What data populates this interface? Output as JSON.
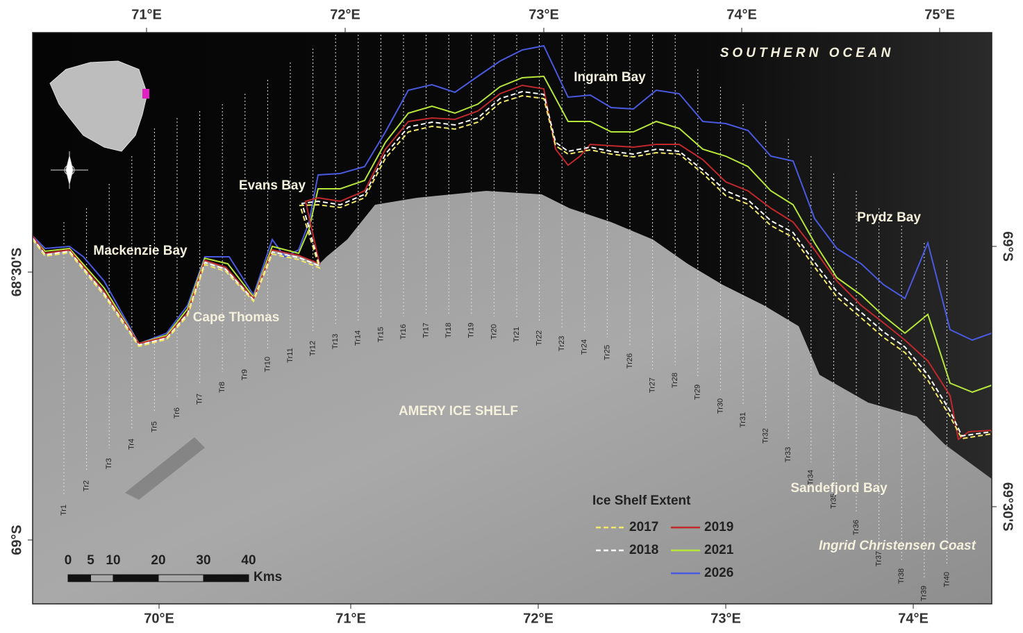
{
  "graticule": {
    "top": [
      "71°E",
      "72°E",
      "73°E",
      "74°E",
      "75°E"
    ],
    "bottom": [
      "70°E",
      "71°E",
      "72°E",
      "73°E",
      "74°E"
    ],
    "left": [
      "68°30'S",
      "69°S"
    ],
    "right": [
      "69°S",
      "69°30'S"
    ]
  },
  "places": {
    "ocean": "SOUTHERN OCEAN",
    "ingram": "Ingram Bay",
    "evans": "Evans Bay",
    "mackenzie": "Mackenzie Bay",
    "cape": "Cape Thomas",
    "prydz": "Prydz Bay",
    "shelf": "AMERY ICE SHELF",
    "sandefjord": "Sandefjord Bay",
    "coast": "Ingrid Christensen Coast"
  },
  "legend": {
    "title": "Ice Shelf Extent",
    "items": [
      {
        "label": "2017",
        "color": "#f2e86a",
        "dashed": true
      },
      {
        "label": "2019",
        "color": "#c0282c",
        "dashed": false
      },
      {
        "label": "2018",
        "color": "#ffffff",
        "dashed": true
      },
      {
        "label": "2021",
        "color": "#b6e63a",
        "dashed": false
      },
      {
        "label": "2026",
        "color": "#4a5ae0",
        "dashed": false
      }
    ]
  },
  "scale_bar": {
    "ticks": [
      0,
      5,
      10,
      20,
      30,
      40
    ],
    "unit": "Kms"
  },
  "transects": [
    "Tr1",
    "Tr2",
    "Tr3",
    "Tr4",
    "Tr5",
    "Tr6",
    "Tr7",
    "Tr8",
    "Tr9",
    "Tr10",
    "Tr11",
    "Tr12",
    "Tr13",
    "Tr14",
    "Tr15",
    "Tr16",
    "Tr17",
    "Tr18",
    "Tr19",
    "Tr20",
    "Tr21",
    "Tr22",
    "Tr23",
    "Tr24",
    "Tr25",
    "Tr26",
    "Tr27",
    "Tr28",
    "Tr29",
    "Tr30",
    "Tr31",
    "Tr32",
    "Tr33",
    "Tr34",
    "Tr35",
    "Tr36",
    "Tr37",
    "Tr38",
    "Tr39",
    "Tr40"
  ]
}
